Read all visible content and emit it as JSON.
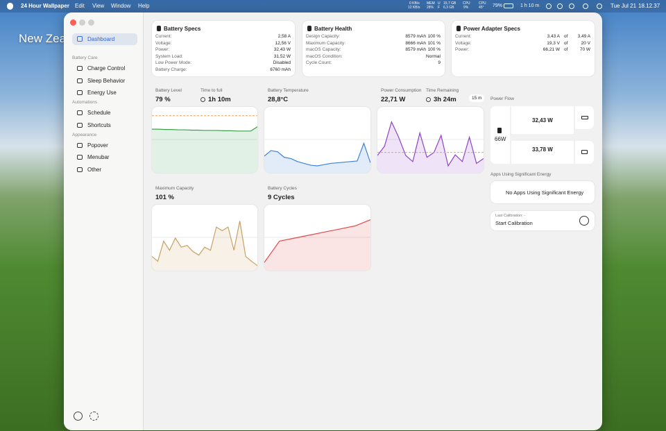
{
  "menubar": {
    "app": "24 Hour Wallpaper",
    "menus": [
      "Edit",
      "View",
      "Window",
      "Help"
    ],
    "status": {
      "net_up": "0 KB/s",
      "net_down": "12 KB/s",
      "mem_label": "MEM",
      "mem": "28%",
      "used_label": "U",
      "used": "15,7 GB",
      "free_label": "F",
      "free": "6,3 GB",
      "cpu_label": "CPU",
      "cpu": "9%",
      "temp_label": "CPU",
      "temp": "45°",
      "battery": "79%",
      "battery_time": "1 h 10 m",
      "date": "Tue Jul 21",
      "time": "18.12.37"
    }
  },
  "desktop": {
    "label": "New Zeal"
  },
  "sidebar": {
    "selected": "Dashboard",
    "groups": [
      {
        "title": "Battery Care",
        "items": [
          "Charge Control",
          "Sleep Behavior",
          "Energy Use"
        ]
      },
      {
        "title": "Automations",
        "items": [
          "Schedule",
          "Shortcuts"
        ]
      },
      {
        "title": "Appearance",
        "items": [
          "Popover",
          "Menubar",
          "Other"
        ]
      }
    ]
  },
  "specs": [
    {
      "title": "Battery Specs",
      "rows": [
        [
          "Current:",
          "2,58 A"
        ],
        [
          "Voltage:",
          "12,56 V"
        ],
        [
          "Power:",
          "32,43 W"
        ],
        [
          "System Load:",
          "31,52 W"
        ],
        [
          "Low Power Mode:",
          "Disabled"
        ],
        [
          "Battery Charge:",
          "6760 mAh"
        ]
      ]
    },
    {
      "title": "Battery Health",
      "rows": [
        [
          "Design Capacity:",
          "8579 mAh",
          "100 %"
        ],
        [
          "Maximum Capacity:",
          "8666 mAh",
          "101 %"
        ],
        [
          "macOS Capacity:",
          "8579 mAh",
          "100 %"
        ],
        [
          "macOS Condition:",
          "Normal"
        ],
        [
          "Cycle Count:",
          "9"
        ]
      ]
    },
    {
      "title": "Power Adapter Specs",
      "rows": [
        [
          "Current:",
          "3,43 A",
          "of",
          "3,49 A"
        ],
        [
          "Voltage:",
          "19,3 V",
          "of",
          "20 V"
        ],
        [
          "Power:",
          "66,21 W",
          "of",
          "70 W"
        ]
      ]
    }
  ],
  "tiles": [
    {
      "label": "Battery Level",
      "value": "79 %",
      "label2": "Time to full",
      "value2": "1h 10m",
      "spark": {
        "color": "#3f9e4f",
        "ylim": [
          0,
          100
        ],
        "reference": 90,
        "values": [
          68,
          68,
          67.5,
          67.5,
          67,
          67,
          66.5,
          66.5,
          66,
          66,
          66,
          65.5,
          65.5,
          65,
          65,
          65,
          72
        ]
      }
    },
    {
      "label": "Battery Temperature",
      "value": "28,8°C",
      "spark": {
        "color": "#3b82d9",
        "ylim": [
          0,
          100
        ],
        "values": [
          24,
          33,
          31,
          22,
          20,
          15,
          12,
          9,
          8,
          10,
          12,
          13,
          14,
          15,
          16,
          45,
          13
        ]
      }
    },
    {
      "label": "Power Consumption",
      "value": "22,71 W",
      "label2": "Time Remaining",
      "value2": "3h 24m",
      "badge": "15 m",
      "spark": {
        "color": "#8e44c9",
        "ylim": [
          0,
          100
        ],
        "reference": 30,
        "values": [
          25,
          40,
          80,
          55,
          25,
          15,
          62,
          22,
          30,
          58,
          8,
          26,
          15,
          55,
          12,
          20
        ]
      }
    },
    {
      "label": "Maximum Capacity",
      "value": "101 %",
      "spark": {
        "color": "#c9a062",
        "ylim": [
          0,
          100
        ],
        "values": [
          20,
          12,
          45,
          30,
          50,
          35,
          38,
          28,
          22,
          35,
          30,
          68,
          62,
          68,
          30,
          78,
          20,
          12,
          5
        ]
      }
    },
    {
      "label": "Battery Cycles",
      "value": "9 Cycles",
      "spark": {
        "color": "#e04b4b",
        "ylim": [
          0,
          100
        ],
        "values": [
          10,
          45,
          50,
          55,
          60,
          65,
          70,
          80
        ]
      }
    }
  ],
  "flow": {
    "title": "Power Flow",
    "source": "66W",
    "to_battery": "32,43 W",
    "to_system": "33,78 W"
  },
  "apps": {
    "title": "Apps Using Significant Energy",
    "message": "No Apps Using Significant Energy"
  },
  "calibration": {
    "last": "Last Calibration: -",
    "action": "Start Calibration"
  }
}
